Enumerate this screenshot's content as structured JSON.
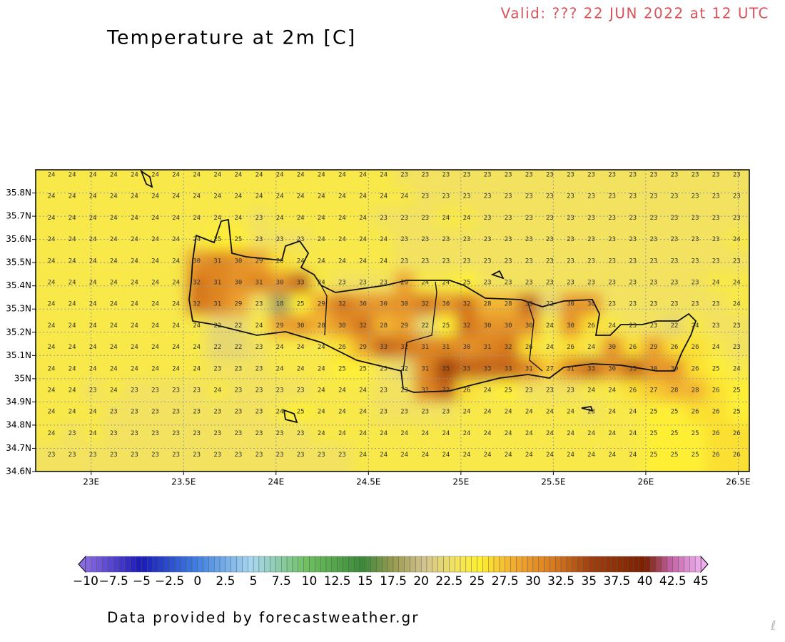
{
  "chart_data": {
    "type": "contour-map",
    "title": "Temperature at 2m [C]",
    "valid": "Valid: ??? 22 JUN 2022 at 12 UTC",
    "footer": "Data provided by forecastweather.gr",
    "xlim": [
      22.7,
      26.56
    ],
    "ylim": [
      34.6,
      35.9
    ],
    "xticks": [
      {
        "value": 23,
        "label": "23E"
      },
      {
        "value": 23.5,
        "label": "23.5E"
      },
      {
        "value": 24,
        "label": "24E"
      },
      {
        "value": 24.5,
        "label": "24.5E"
      },
      {
        "value": 25,
        "label": "25E"
      },
      {
        "value": 25.5,
        "label": "25.5E"
      },
      {
        "value": 26,
        "label": "26E"
      },
      {
        "value": 26.5,
        "label": "26.5E"
      }
    ],
    "yticks": [
      {
        "value": 34.6,
        "label": "34.6N"
      },
      {
        "value": 34.7,
        "label": "34.7N"
      },
      {
        "value": 34.8,
        "label": "34.8N"
      },
      {
        "value": 34.9,
        "label": "34.9N"
      },
      {
        "value": 35,
        "label": "35N"
      },
      {
        "value": 35.1,
        "label": "35.1N"
      },
      {
        "value": 35.2,
        "label": "35.2N"
      },
      {
        "value": 35.3,
        "label": "35.3N"
      },
      {
        "value": 35.4,
        "label": "35.4N"
      },
      {
        "value": 35.5,
        "label": "35.5N"
      },
      {
        "value": 35.6,
        "label": "35.6N"
      },
      {
        "value": 35.7,
        "label": "35.7N"
      },
      {
        "value": 35.8,
        "label": "35.8N"
      }
    ],
    "grid": true,
    "colorbar_ticks": [
      {
        "value": -10,
        "label": "−10"
      },
      {
        "value": -7.5,
        "label": "−7.5"
      },
      {
        "value": -5,
        "label": "−5"
      },
      {
        "value": -2.5,
        "label": "−2.5"
      },
      0,
      2.5,
      5,
      7.5,
      10,
      12.5,
      15,
      17.5,
      20,
      22.5,
      25,
      27.5,
      30,
      32.5,
      35,
      37.5,
      40,
      42.5,
      45
    ],
    "values": [
      [
        24,
        24,
        24,
        24,
        24,
        24,
        24,
        24,
        24,
        24,
        24,
        24,
        24,
        24,
        24,
        24,
        24,
        23,
        23,
        23,
        23,
        23,
        23,
        23,
        23,
        23,
        23,
        23,
        23,
        23,
        23,
        23,
        23,
        23
      ],
      [
        24,
        24,
        24,
        24,
        24,
        24,
        24,
        24,
        24,
        24,
        24,
        24,
        24,
        24,
        24,
        24,
        24,
        24,
        23,
        23,
        23,
        23,
        23,
        23,
        23,
        23,
        23,
        23,
        23,
        23,
        23,
        23,
        23,
        23
      ],
      [
        24,
        24,
        24,
        24,
        24,
        24,
        24,
        24,
        24,
        24,
        23,
        24,
        24,
        24,
        24,
        24,
        23,
        23,
        23,
        24,
        24,
        23,
        23,
        23,
        23,
        23,
        23,
        23,
        23,
        23,
        23,
        23,
        23,
        23
      ],
      [
        24,
        24,
        24,
        24,
        24,
        24,
        24,
        24,
        25,
        25,
        23,
        23,
        23,
        24,
        24,
        24,
        24,
        23,
        23,
        23,
        23,
        23,
        23,
        23,
        23,
        23,
        23,
        23,
        23,
        23,
        23,
        23,
        23,
        24
      ],
      [
        24,
        24,
        24,
        24,
        24,
        24,
        24,
        30,
        31,
        30,
        29,
        26,
        24,
        24,
        24,
        24,
        24,
        23,
        23,
        23,
        23,
        23,
        23,
        23,
        23,
        23,
        23,
        23,
        23,
        23,
        23,
        23,
        23,
        23
      ],
      [
        24,
        24,
        24,
        24,
        24,
        24,
        24,
        32,
        31,
        30,
        31,
        30,
        33,
        24,
        23,
        23,
        23,
        29,
        24,
        24,
        25,
        23,
        23,
        23,
        23,
        23,
        23,
        23,
        23,
        23,
        23,
        23,
        24,
        24
      ],
      [
        24,
        24,
        24,
        24,
        24,
        24,
        24,
        32,
        31,
        29,
        23,
        18,
        25,
        29,
        32,
        30,
        30,
        30,
        32,
        30,
        32,
        28,
        28,
        33,
        22,
        30,
        30,
        23,
        23,
        23,
        23,
        23,
        23,
        24
      ],
      [
        24,
        24,
        24,
        24,
        24,
        24,
        24,
        24,
        22,
        22,
        24,
        29,
        30,
        28,
        30,
        32,
        28,
        29,
        22,
        25,
        32,
        30,
        30,
        30,
        24,
        30,
        26,
        24,
        23,
        23,
        22,
        24,
        23,
        23
      ],
      [
        24,
        24,
        24,
        24,
        24,
        24,
        24,
        24,
        22,
        22,
        23,
        24,
        24,
        24,
        26,
        29,
        33,
        32,
        31,
        31,
        30,
        31,
        32,
        26,
        24,
        26,
        24,
        30,
        26,
        29,
        26,
        26,
        24,
        23
      ],
      [
        24,
        24,
        24,
        24,
        24,
        24,
        24,
        24,
        23,
        23,
        23,
        24,
        24,
        24,
        25,
        25,
        23,
        22,
        31,
        35,
        33,
        33,
        33,
        31,
        27,
        31,
        33,
        30,
        33,
        30,
        30,
        26,
        25,
        24
      ],
      [
        24,
        24,
        23,
        24,
        23,
        23,
        23,
        23,
        24,
        23,
        23,
        23,
        23,
        24,
        24,
        24,
        23,
        23,
        31,
        33,
        26,
        24,
        25,
        23,
        23,
        23,
        24,
        24,
        26,
        27,
        28,
        28,
        26,
        25
      ],
      [
        24,
        24,
        24,
        23,
        23,
        23,
        23,
        23,
        23,
        23,
        23,
        24,
        25,
        24,
        24,
        24,
        23,
        23,
        23,
        23,
        24,
        24,
        24,
        24,
        24,
        24,
        23,
        24,
        24,
        25,
        25,
        26,
        26,
        25
      ],
      [
        24,
        23,
        24,
        23,
        23,
        23,
        23,
        23,
        23,
        23,
        23,
        23,
        23,
        24,
        24,
        24,
        24,
        24,
        24,
        24,
        24,
        24,
        24,
        24,
        24,
        24,
        24,
        24,
        24,
        25,
        25,
        25,
        26,
        26
      ],
      [
        23,
        23,
        23,
        23,
        23,
        23,
        23,
        23,
        23,
        23,
        23,
        23,
        23,
        23,
        23,
        24,
        24,
        24,
        24,
        24,
        24,
        24,
        24,
        24,
        24,
        24,
        24,
        24,
        24,
        25,
        25,
        25,
        26,
        26
      ]
    ]
  }
}
